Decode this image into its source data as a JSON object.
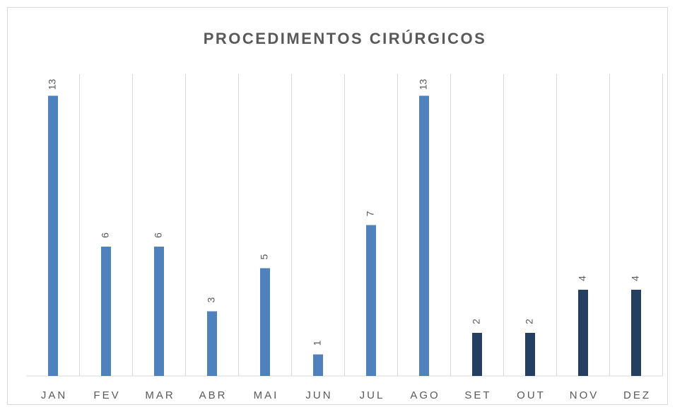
{
  "chart_data": {
    "type": "bar",
    "title": "PROCEDIMENTOS CIRÚRGICOS",
    "categories": [
      "JAN",
      "FEV",
      "MAR",
      "ABR",
      "MAI",
      "JUN",
      "JUL",
      "AGO",
      "SET",
      "OUT",
      "NOV",
      "DEZ"
    ],
    "values": [
      13,
      6,
      6,
      3,
      5,
      1,
      7,
      13,
      2,
      2,
      4,
      4
    ],
    "colors": [
      "#4f81bd",
      "#4f81bd",
      "#4f81bd",
      "#4f81bd",
      "#4f81bd",
      "#4f81bd",
      "#4f81bd",
      "#4f81bd",
      "#243f60",
      "#243f60",
      "#243f60",
      "#243f60"
    ],
    "ylim": [
      0,
      14
    ],
    "grid": true
  }
}
